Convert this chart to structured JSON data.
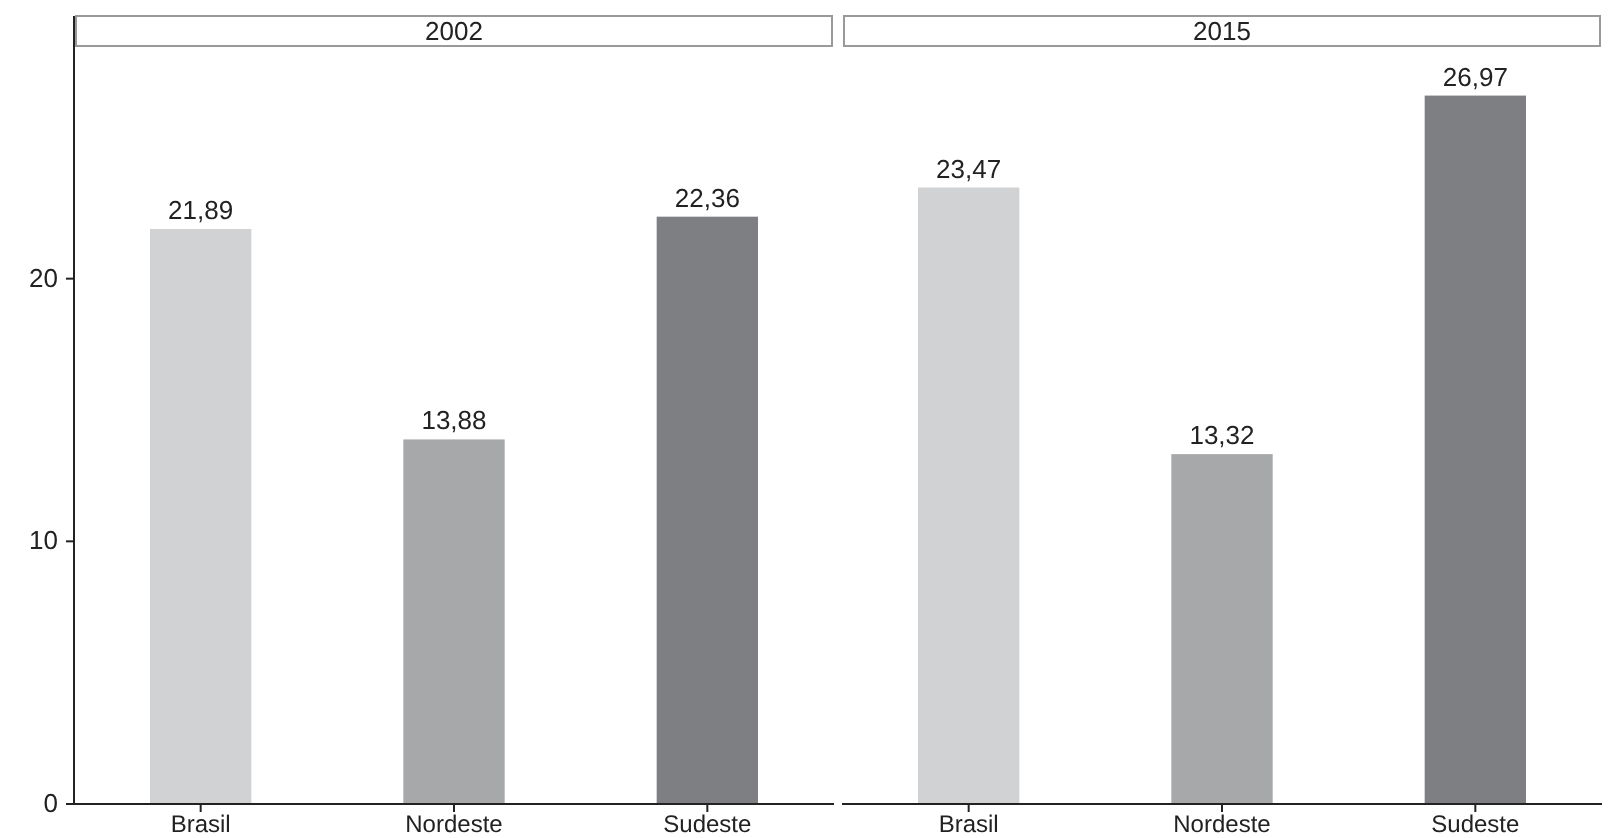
{
  "chart_data": [
    {
      "type": "bar",
      "title": "2002",
      "categories": [
        "Brasil",
        "Nordeste",
        "Sudeste"
      ],
      "values": [
        21.89,
        13.88,
        22.36
      ],
      "colors": [
        "#d1d2d4",
        "#a7a8aa",
        "#7e7f82"
      ],
      "value_labels": [
        "21,89",
        "13,88",
        "22,36"
      ],
      "ylim": [
        0,
        30
      ],
      "yticks": [
        0,
        10,
        20
      ],
      "grid": false
    },
    {
      "type": "bar",
      "title": "2015",
      "categories": [
        "Brasil",
        "Nordeste",
        "Sudeste"
      ],
      "values": [
        23.47,
        13.32,
        26.97
      ],
      "colors": [
        "#d1d2d4",
        "#a7a8aa",
        "#7e7f82"
      ],
      "value_labels": [
        "23,47",
        "13,32",
        "26,97"
      ],
      "ylim": [
        0,
        30
      ],
      "grid": false,
      "tick_labels": "x"
    }
  ]
}
